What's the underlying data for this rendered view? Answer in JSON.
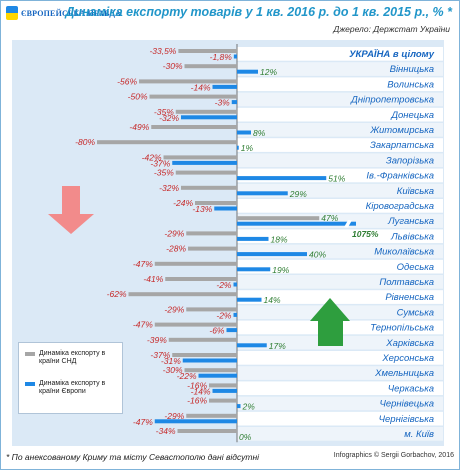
{
  "header": {
    "logo_text": "ЄВРОПЕЙСЬКА ПРАВДА",
    "title": "Динаміка експорту товарів у 1 кв. 2016 р.  до 1 кв. 2015 р., % *",
    "source": "Джерело: Держстат України"
  },
  "footer": {
    "footnote": "* По анексованому Криму та місту Севастополю дані відсутні",
    "credit": "Infographics © Sergii Gorbachov, 2016"
  },
  "colors": {
    "cis_bar": "#a6a6a6",
    "eu_bar": "#1e88e5",
    "neg_label": "#c62828",
    "pos_label": "#2e7d32",
    "region_label": "#1565c0",
    "down_arrow": "#f28b8b",
    "up_arrow": "#2e9e3e"
  },
  "legend": {
    "cis": "Динаміка експорту в країни СНД",
    "eu": "Динаміка експорту в країни Європи"
  },
  "chart_data": {
    "type": "bar",
    "orientation": "horizontal",
    "title": "Динаміка експорту товарів у 1 кв. 2016 р.  до 1 кв. 2015 р., % *",
    "axis_unit": "%",
    "categories": [
      "УКРАЇНА в цілому",
      "Вінницька",
      "Волинська",
      "Дніпропетровська",
      "Донецька",
      "Житомирська",
      "Закарпатська",
      "Запорізька",
      "Ів.-Франківська",
      "Київська",
      "Кіровоградська",
      "Луганська",
      "Львівська",
      "Миколаївська",
      "Одеська",
      "Полтавська",
      "Рівненська",
      "Сумська",
      "Тернопільська",
      "Харківська",
      "Херсонська",
      "Хмельницька",
      "Черкаська",
      "Чернівецька",
      "Чернігівська",
      "м. Київ"
    ],
    "series": [
      {
        "name": "Динаміка експорту в країни СНД",
        "values": [
          -33.5,
          -30,
          -56,
          -50,
          -35,
          -49,
          -80,
          -42,
          -35,
          -32,
          -24,
          47,
          -29,
          -28,
          -47,
          -41,
          -62,
          -29,
          -47,
          -39,
          -37,
          -30,
          -16,
          -16,
          -29,
          -34
        ]
      },
      {
        "name": "Динаміка експорту в країни Європи",
        "values": [
          -1.8,
          12,
          -14,
          -3,
          -32,
          8,
          1,
          -37,
          51,
          29,
          -13,
          1075,
          18,
          40,
          19,
          -2,
          14,
          -2,
          -6,
          17,
          -31,
          -22,
          -14,
          2,
          -47,
          0
        ]
      }
    ],
    "value_labels": {
      "cis": [
        "-33,5%",
        "-30%",
        "-56%",
        "-50%",
        "-35%",
        "-49%",
        "-80%",
        "-42%",
        "-35%",
        "-32%",
        "-24%",
        "47%",
        "-29%",
        "-28%",
        "-47%",
        "-41%",
        "-62%",
        "-29%",
        "-47%",
        "-39%",
        "-37%",
        "-30%",
        "-16%",
        "-16%",
        "-29%",
        "-34%"
      ],
      "eu": [
        "-1,8%",
        "12%",
        "-14%",
        "-3%",
        "-32%",
        "8%",
        "1%",
        "-37%",
        "51%",
        "29%",
        "-13%",
        "1075%",
        "18%",
        "40%",
        "19%",
        "-2%",
        "14%",
        "-2%",
        "-6%",
        "17%",
        "-31%",
        "-22%",
        "-14%",
        "2%",
        "-47%",
        "0%"
      ]
    },
    "truncated_bar_index": 11,
    "grid": false,
    "legend_position": "bottom-left"
  }
}
